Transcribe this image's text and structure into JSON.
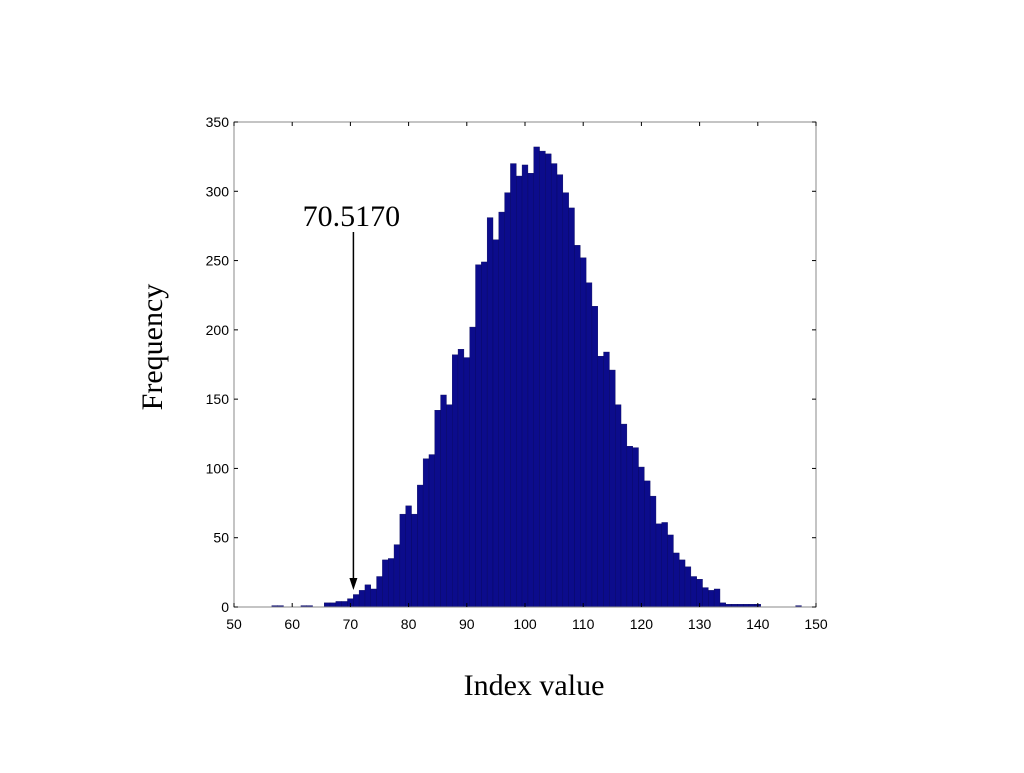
{
  "chart_data": {
    "type": "bar",
    "xlabel": "Index value",
    "ylabel": "Frequency",
    "xlim": [
      50,
      150
    ],
    "ylim": [
      0,
      350
    ],
    "xticks": [
      50,
      60,
      70,
      80,
      90,
      100,
      110,
      120,
      130,
      140,
      150
    ],
    "yticks": [
      0,
      50,
      100,
      150,
      200,
      250,
      300,
      350
    ],
    "grid": false,
    "bar_color": "#0c0c8c",
    "bin_width": 1,
    "x": [
      57,
      58,
      62,
      63,
      66,
      67,
      68,
      69,
      70,
      71,
      72,
      73,
      74,
      75,
      76,
      77,
      78,
      79,
      80,
      81,
      82,
      83,
      84,
      85,
      86,
      87,
      88,
      89,
      90,
      91,
      92,
      93,
      94,
      95,
      96,
      97,
      98,
      99,
      100,
      101,
      102,
      103,
      104,
      105,
      106,
      107,
      108,
      109,
      110,
      111,
      112,
      113,
      114,
      115,
      116,
      117,
      118,
      119,
      120,
      121,
      122,
      123,
      124,
      125,
      126,
      127,
      128,
      129,
      130,
      131,
      132,
      133,
      134,
      135,
      136,
      137,
      138,
      139,
      140,
      147
    ],
    "values": [
      1,
      1,
      1,
      1,
      3,
      3,
      4,
      4,
      6,
      9,
      12,
      16,
      13,
      22,
      34,
      35,
      45,
      67,
      73,
      67,
      88,
      107,
      110,
      142,
      153,
      146,
      182,
      186,
      180,
      202,
      247,
      249,
      281,
      265,
      285,
      299,
      320,
      311,
      319,
      313,
      332,
      329,
      327,
      320,
      312,
      299,
      288,
      261,
      252,
      234,
      217,
      181,
      184,
      171,
      146,
      132,
      116,
      115,
      101,
      91,
      80,
      60,
      61,
      52,
      39,
      34,
      29,
      22,
      20,
      14,
      12,
      13,
      3,
      2,
      2,
      2,
      2,
      2,
      2,
      1
    ],
    "annotation": {
      "text": "70.5170",
      "x": 70.517
    }
  }
}
